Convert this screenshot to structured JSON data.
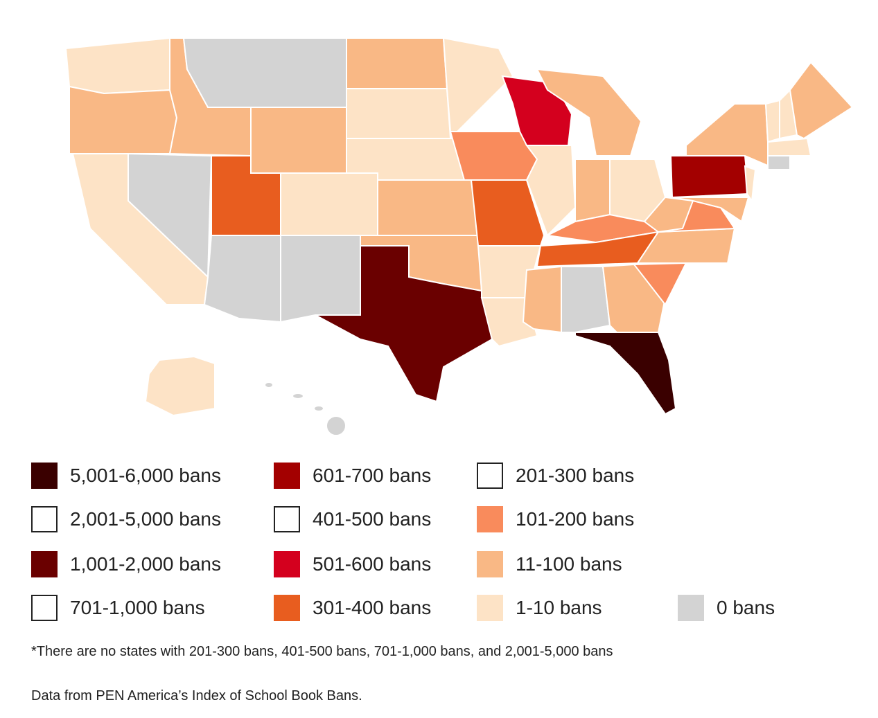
{
  "legend": {
    "items": [
      {
        "label": "5,001-6,000 bans",
        "color": "#3a0000"
      },
      {
        "label": "601-700 bans",
        "color": "#a30000"
      },
      {
        "label": "201-300 bans",
        "color": "#ffffff"
      },
      {
        "label": "2,001-5,000 bans",
        "color": "#ffffff"
      },
      {
        "label": "401-500 bans",
        "color": "#ffffff"
      },
      {
        "label": "101-200 bans",
        "color": "#f98b5c"
      },
      {
        "label": "1,001-2,000 bans",
        "color": "#6a0000"
      },
      {
        "label": "501-600 bans",
        "color": "#d4001e"
      },
      {
        "label": "11-100 bans",
        "color": "#f9b885"
      },
      {
        "label": "701-1,000 bans",
        "color": "#ffffff"
      },
      {
        "label": "301-400 bans",
        "color": "#e85d1f"
      },
      {
        "label": "1-10 bans",
        "color": "#fde3c6"
      },
      {
        "label": "0 bans",
        "color": "#d3d3d3"
      }
    ]
  },
  "footnote": "*There are no states with 201-300 bans, 401-500 bans, 701-1,000 bans, and 2,001-5,000 bans",
  "source": "Data from PEN America’s Index of School Book Bans."
}
